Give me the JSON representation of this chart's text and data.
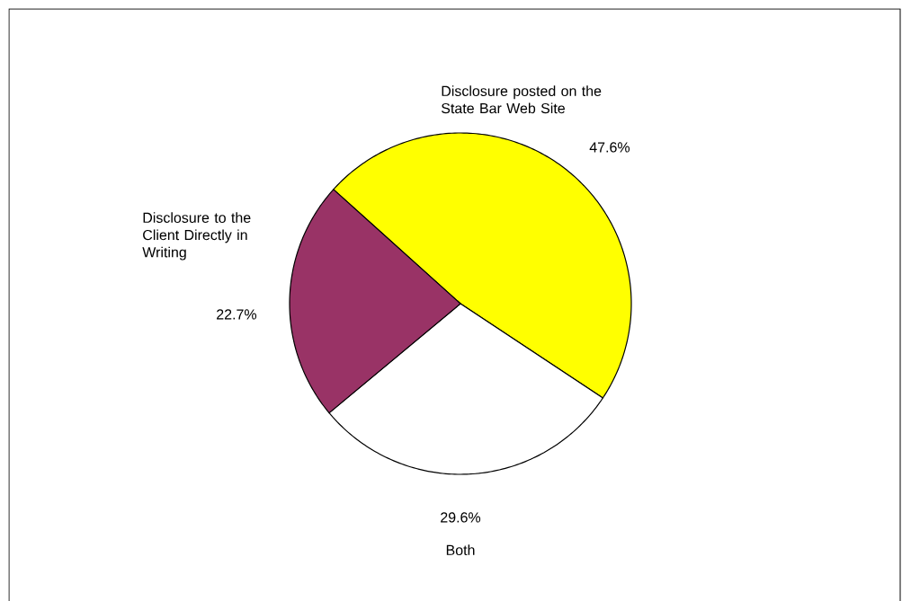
{
  "chart_data": {
    "type": "pie",
    "categories": [
      "Disclosure posted on the State Bar Web Site",
      "Both",
      "Disclosure to the Client Directly in Writing"
    ],
    "values": [
      47.6,
      29.6,
      22.7
    ],
    "colors": [
      "#ffff00",
      "#ffffff",
      "#993366"
    ],
    "value_labels": [
      "47.6%",
      "29.6%",
      "22.7%"
    ]
  }
}
